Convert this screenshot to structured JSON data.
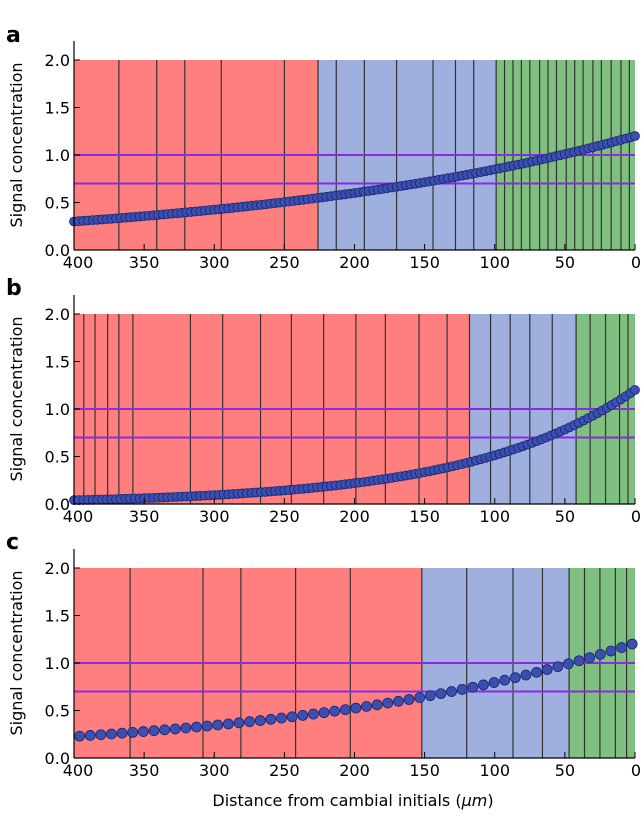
{
  "figure": {
    "xlabel": "Distance from cambial initials (",
    "xlabel_unit": "μm",
    "xlabel_suffix": ")"
  },
  "colors": {
    "red_zone": "#ff7f7f",
    "blue_zone": "#9fb0df",
    "green_zone": "#7fbf7f",
    "threshold_line": "#8a2be2",
    "points": "#3a4fb0",
    "cell_wall": "#333333"
  },
  "chart_data": [
    {
      "type": "scatter",
      "panel_label": "a",
      "xlabel": "",
      "ylabel": "Signal concentration",
      "xlim": [
        400,
        0
      ],
      "ylim": [
        0,
        2.2
      ],
      "x_ticks": [
        "400",
        "350",
        "300",
        "250",
        "200",
        "150",
        "100",
        "50",
        "0"
      ],
      "y_ticks": [
        "0.0",
        "0.5",
        "1.0",
        "1.5",
        "2.0"
      ],
      "thresholds": [
        1.0,
        0.7
      ],
      "zones": [
        {
          "color": "red",
          "from": 400,
          "to": 226
        },
        {
          "color": "blue",
          "from": 226,
          "to": 99
        },
        {
          "color": "green",
          "from": 99,
          "to": 0
        }
      ],
      "cell_boundaries": [
        368,
        341,
        321,
        295,
        250,
        226,
        213,
        193,
        170,
        144,
        128,
        115,
        99,
        93,
        87,
        81,
        75,
        68,
        62,
        56,
        49,
        43,
        37,
        30,
        24,
        17,
        10,
        4
      ],
      "points": {
        "x_start": 400,
        "x_end": 0,
        "n": 121,
        "y_start": 0.3,
        "y_end": 1.2
      },
      "point_size": 4.5
    },
    {
      "type": "scatter",
      "panel_label": "b",
      "xlabel": "",
      "ylabel": "Signal concentration",
      "xlim": [
        400,
        0
      ],
      "ylim": [
        0,
        2.2
      ],
      "x_ticks": [
        "400",
        "350",
        "300",
        "250",
        "200",
        "150",
        "100",
        "50",
        "0"
      ],
      "y_ticks": [
        "0.0",
        "0.5",
        "1.0",
        "1.5",
        "2.0"
      ],
      "thresholds": [
        1.0,
        0.7
      ],
      "zones": [
        {
          "color": "red",
          "from": 400,
          "to": 118
        },
        {
          "color": "blue",
          "from": 118,
          "to": 42
        },
        {
          "color": "green",
          "from": 42,
          "to": 0
        }
      ],
      "cell_boundaries": [
        393,
        385,
        376,
        368,
        358,
        317,
        294,
        267,
        245,
        222,
        199,
        178,
        154,
        134,
        118,
        103,
        89,
        75,
        59,
        42,
        32,
        21,
        11,
        5
      ],
      "points": {
        "x_start": 400,
        "x_end": 0,
        "n": 121,
        "y_start": 0.04,
        "y_end": 1.2
      },
      "point_size": 4.5
    },
    {
      "type": "scatter",
      "panel_label": "c",
      "xlabel": "",
      "ylabel": "Signal concentration",
      "xlim": [
        400,
        0
      ],
      "ylim": [
        0,
        2.2
      ],
      "x_ticks": [
        "400",
        "350",
        "300",
        "250",
        "200",
        "150",
        "100",
        "50",
        "0"
      ],
      "y_ticks": [
        "0.0",
        "0.5",
        "1.0",
        "1.5",
        "2.0"
      ],
      "thresholds": [
        1.0,
        0.7
      ],
      "zones": [
        {
          "color": "red",
          "from": 400,
          "to": 152
        },
        {
          "color": "blue",
          "from": 152,
          "to": 47
        },
        {
          "color": "green",
          "from": 47,
          "to": 0
        }
      ],
      "cell_boundaries": [
        360,
        308,
        281,
        242,
        203,
        152,
        120,
        87,
        66,
        47,
        36,
        25,
        14,
        6
      ],
      "points": {
        "x_start": 396,
        "x_end": 2,
        "n": 53,
        "y_start": 0.23,
        "y_end": 1.2
      },
      "point_size": 5
    }
  ]
}
